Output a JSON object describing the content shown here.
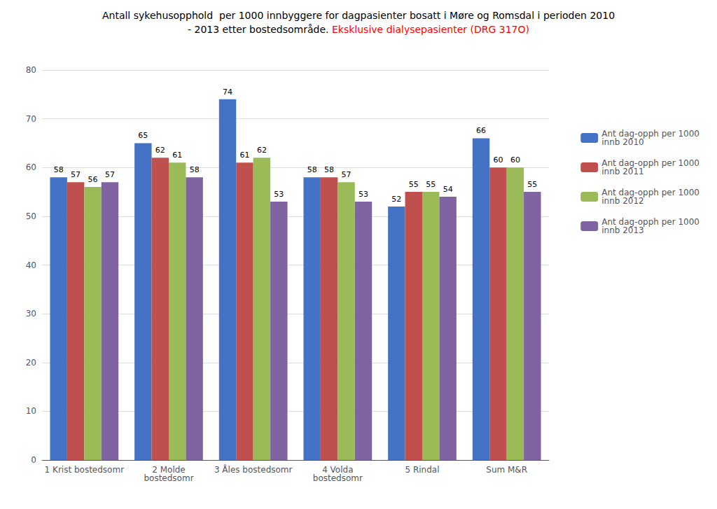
{
  "chart_data": {
    "type": "bar",
    "title": "Antall sykehusopphold  per 1000 innbyggere for dagpasienter bosatt i Møre og Romsdal i perioden 2010",
    "subtitle": [
      {
        "text": "- 2013 etter bostedsområde. ",
        "color": "#000000"
      },
      {
        "text": "Eksklusive dialysepasienter (DRG 317O)",
        "color": "#FF0000"
      }
    ],
    "categories": [
      "1 Krist bostedsomr",
      "2 Molde\nbostedsomr",
      "3 Åles bostedsomr",
      "4 Volda\nbostedsomr",
      "5 Rindal",
      "Sum M&R"
    ],
    "series": [
      {
        "name": "Ant dag-opph per 1000\ninnb 2010",
        "color": "#4472C4",
        "values": [
          58,
          65,
          74,
          58,
          52,
          66
        ]
      },
      {
        "name": "Ant dag-opph per 1000\ninnb 2011",
        "color": "#C0504D",
        "values": [
          57,
          62,
          61,
          58,
          55,
          60
        ]
      },
      {
        "name": "Ant dag-opph per 1000\ninnb 2012",
        "color": "#9BBB59",
        "values": [
          56,
          61,
          62,
          57,
          55,
          60
        ]
      },
      {
        "name": "Ant dag-opph per 1000\ninnb 2013",
        "color": "#8064A2",
        "values": [
          57,
          58,
          53,
          53,
          54,
          55
        ]
      }
    ],
    "ylim": [
      0,
      80
    ],
    "yticks": [
      0,
      10,
      20,
      30,
      40,
      50,
      60,
      70,
      80
    ],
    "grid": true,
    "legend": "right",
    "data_labels": true
  }
}
